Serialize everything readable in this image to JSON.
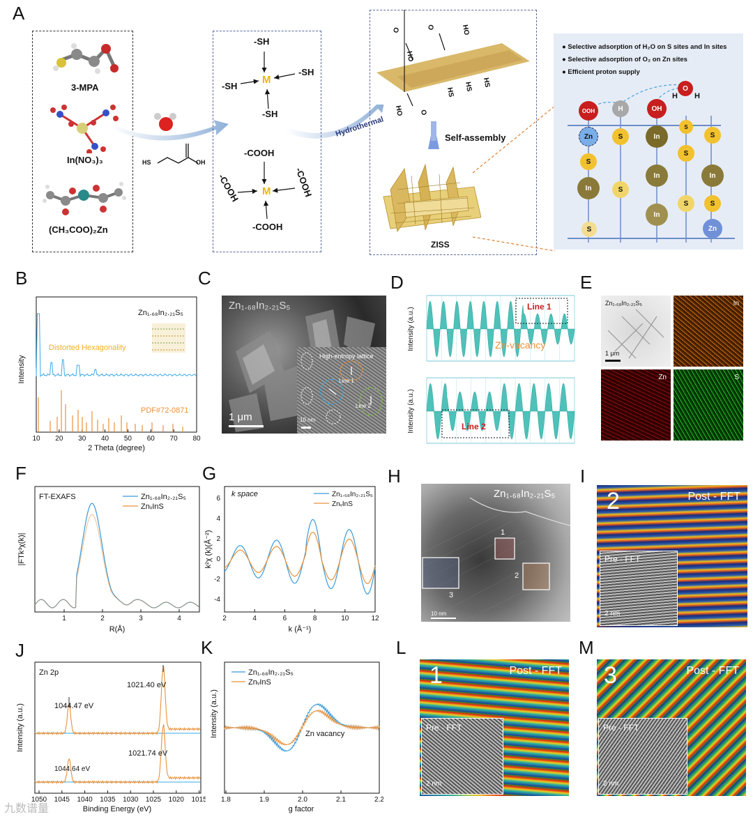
{
  "panels": {
    "A": "A",
    "B": "B",
    "C": "C",
    "D": "D",
    "E": "E",
    "F": "F",
    "G": "G",
    "H": "H",
    "I": "I",
    "J": "J",
    "K": "K",
    "L": "L",
    "M": "M"
  },
  "panelA": {
    "precursors": [
      "3-MPA",
      "In(NO₃)₃",
      "(CH₃COO)₂Zn"
    ],
    "sh_labels": [
      "-SH",
      "-SH",
      "-SH",
      "-SH"
    ],
    "cooh_labels": [
      "-COOH",
      "-COOH",
      "-COOH",
      "-COOH"
    ],
    "metal": "M",
    "mpa_sh": "HS",
    "mpa_oh": "OH",
    "hydrothermal": "Hydrothermal",
    "self_assembly": "Self-assembly",
    "product": "ZISS",
    "bullets": [
      "Selective adsorption of H₂O on S sites and In sites",
      "Selective adsorption of O₂ on Zn sites",
      "Efficient proton supply"
    ],
    "water_O": "O",
    "water_H": "H",
    "lattice_atoms": {
      "ooh": "OOH",
      "h": "H",
      "oh": "OH",
      "zn": "Zn",
      "s": "S",
      "in": "In"
    }
  },
  "panelB": {
    "compound": "Zn₁.₆₈In₂.₂₁S₅",
    "annotation": "Distorted Hexagonality",
    "pdf": "PDF#72-0871",
    "ylabel": "Intensity",
    "xlabel": "2 Theta (degree)",
    "xticks": [
      "10",
      "20",
      "30",
      "40",
      "50",
      "60",
      "70",
      "80"
    ]
  },
  "panelC": {
    "compound": "Zn₁.₆₈In₂.₂₁S₅",
    "scale": "1 μm",
    "inset_title": "High-entropy lattice",
    "line1": "Line 1",
    "line2": "Line 2",
    "inset_scale": "10 nm"
  },
  "panelD": {
    "ylabel": "Intensity (a.u.)",
    "line1": "Line 1",
    "line2": "Line 2",
    "vacancy": "Zn-vacancy"
  },
  "panelE": {
    "compound": "Zn₁.₆₈In₂.₂₁S₅",
    "scale": "1 μm",
    "maps": [
      "In",
      "Zn",
      "S"
    ]
  },
  "panelF": {
    "title": "FT-EXAFS",
    "legend": [
      "Zn₁.₆₈In₂.₂₁S₅",
      "ZnᵥInS"
    ],
    "ylabel": "|FTk³χ(k)|",
    "xlabel": "R(Å)",
    "xticks": [
      "1",
      "2",
      "3",
      "4"
    ]
  },
  "panelG": {
    "title": "k space",
    "legend": [
      "Zn₁.₆₈In₂.₂₁S₅",
      "ZnᵥInS"
    ],
    "ylabel": "k²χ (k)(Å⁻²)",
    "xlabel": "k (Å⁻¹)",
    "xticks": [
      "2",
      "4",
      "6",
      "8",
      "10",
      "12"
    ],
    "yticks": [
      "6",
      "4",
      "2",
      "0",
      "-2",
      "-4"
    ]
  },
  "panelH": {
    "compound": "Zn₁.₆₈In₂.₂₁S₅",
    "regions": [
      "1",
      "2",
      "3"
    ],
    "scale": "10 nm"
  },
  "panelI": {
    "num": "2",
    "post": "Post - FFT",
    "pre": "Pre - FFT",
    "scale": "2 nm"
  },
  "panelL": {
    "num": "1",
    "post": "Post - FFT",
    "pre": "Pre - FFT",
    "scale": "2 nm"
  },
  "panelM": {
    "num": "3",
    "post": "Post - FFT",
    "pre": "Pre - FFT",
    "scale": "2 nm"
  },
  "panelJ": {
    "title": "Zn 2p",
    "peaks": [
      "1021.40 eV",
      "1044.47 eV",
      "1021.74 eV",
      "1044.64 eV"
    ],
    "ylabel": "Intensity (a.u.)",
    "xlabel": "Binding Energy (eV)",
    "xticks": [
      "1050",
      "1045",
      "1040",
      "1035",
      "1030",
      "1025",
      "1020",
      "1015"
    ]
  },
  "panelK": {
    "legend": [
      "Zn₁.₆₈In₂.₂₁S₅",
      "ZnᵥInS"
    ],
    "annotation": "Zn vacancy",
    "ylabel": "Intensity (a.u.)",
    "xlabel": "g factor",
    "xticks": [
      "1.8",
      "1.9",
      "2.0",
      "2.1",
      "2.2"
    ]
  },
  "watermark": "九数谱量",
  "colors": {
    "blue": "#3a9ad9",
    "orange": "#e8913a",
    "teal": "#4fc1b9",
    "gold": "#f2c12e",
    "olive": "#8a7a3a"
  }
}
